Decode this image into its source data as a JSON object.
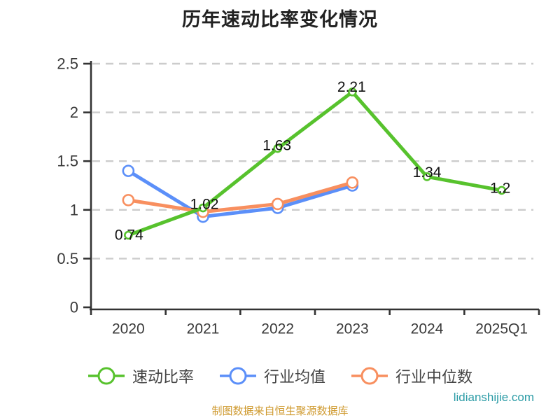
{
  "title": "历年速动比率变化情况",
  "footer": {
    "source_note": "制图数据来自恒生聚源数据库",
    "watermark": "lidianshijie.com"
  },
  "colors": {
    "quick_ratio": "#57C22D",
    "industry_mean": "#5B8FF9",
    "industry_median": "#F88F5F",
    "grid": "#CCCCCC",
    "axis": "#333333",
    "tick_text": "#3A3A3A",
    "data_label": "#111111",
    "legend_text": "#444444",
    "source_note": "#CF9A2F",
    "watermark": "#2C9CA6"
  },
  "chart_data": {
    "type": "line",
    "title": "历年速动比率变化情况",
    "categories": [
      "2020",
      "2021",
      "2022",
      "2023",
      "2024",
      "2025Q1"
    ],
    "series": [
      {
        "name": "速动比率",
        "color_key": "quick_ratio",
        "values": [
          0.74,
          1.02,
          1.63,
          2.21,
          1.34,
          1.2
        ],
        "point_labels": [
          "0.74",
          "1.02",
          "1.63",
          "2.21",
          "1.34",
          "1.2"
        ]
      },
      {
        "name": "行业均值",
        "color_key": "industry_mean",
        "values": [
          1.4,
          0.93,
          1.02,
          1.25,
          null,
          null
        ],
        "point_labels": null
      },
      {
        "name": "行业中位数",
        "color_key": "industry_median",
        "values": [
          1.1,
          0.98,
          1.06,
          1.28,
          null,
          null
        ],
        "point_labels": null
      }
    ],
    "xlabel": "",
    "ylabel": "",
    "ylim": [
      0,
      2.5
    ],
    "yticks": [
      0,
      0.5,
      1,
      1.5,
      2,
      2.5
    ],
    "ytick_labels": [
      "0",
      "0.5",
      "1",
      "1.5",
      "2",
      "2.5"
    ],
    "grid": true,
    "grid_style": "dashed",
    "legend_position": "bottom"
  }
}
